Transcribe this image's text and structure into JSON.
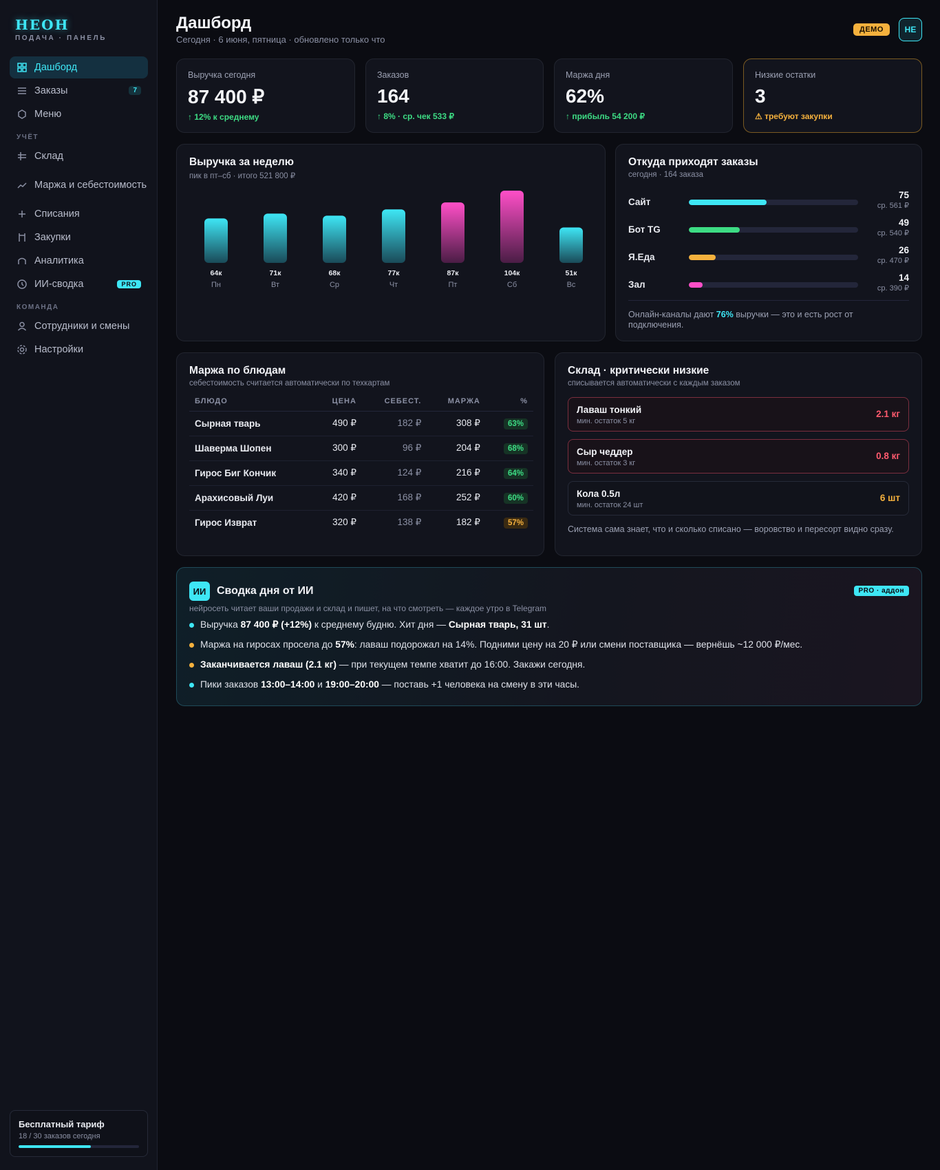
{
  "brand": {
    "logo": "НЕОН",
    "subtitle": "ПОДАЧА · ПАНЕЛЬ"
  },
  "sidebar": {
    "main_items": [
      {
        "label": "Дашборд",
        "icon": "grid-icon",
        "active": true
      },
      {
        "label": "Заказы",
        "icon": "list-icon",
        "badge": "7"
      },
      {
        "label": "Меню",
        "icon": "hexagon-icon"
      }
    ],
    "section_accounting": "УЧЁТ",
    "accounting_items": [
      {
        "label": "Склад",
        "icon": "box-icon"
      },
      {
        "label": "Маржа и себестоимость",
        "icon": "trend-icon"
      },
      {
        "label": "Списания",
        "icon": "plus-icon"
      },
      {
        "label": "Закупки",
        "icon": "cart-icon"
      },
      {
        "label": "Аналитика",
        "icon": "chart-icon"
      },
      {
        "label": "ИИ-сводка",
        "icon": "clock-icon",
        "badge": "PRO"
      }
    ],
    "section_team": "КОМАНДА",
    "team_items": [
      {
        "label": "Сотрудники и смены",
        "icon": "user-icon"
      },
      {
        "label": "Настройки",
        "icon": "gear-icon"
      }
    ],
    "plan": {
      "title": "Бесплатный тариф",
      "usage": "18 / 30 заказов сегодня",
      "used": 18,
      "limit": 30
    }
  },
  "header": {
    "title": "Дашборд",
    "subtitle": "Сегодня · 6 июня, пятница · обновлено только что",
    "demo_badge": "ДЕМО",
    "avatar": "НЕ"
  },
  "kpis": [
    {
      "label": "Выручка сегодня",
      "value": "87 400 ₽",
      "delta": "↑ 12% к среднему"
    },
    {
      "label": "Заказов",
      "value": "164",
      "delta": "↑ 8% · ср. чек 533 ₽"
    },
    {
      "label": "Маржа дня",
      "value": "62%",
      "delta": "↑ прибыль 54 200 ₽"
    },
    {
      "label": "Низкие остатки",
      "value": "3",
      "delta": "⚠ требуют закупки",
      "warning": true
    }
  ],
  "weekly": {
    "title": "Выручка за неделю",
    "subtitle": "пик в пт–сб · итого 521 800 ₽"
  },
  "chart_data": {
    "type": "bar",
    "categories": [
      "Пн",
      "Вт",
      "Ср",
      "Чт",
      "Пт",
      "Сб",
      "Вс"
    ],
    "values": [
      64,
      71,
      68,
      77,
      87,
      104,
      51
    ],
    "value_labels": [
      "64к",
      "71к",
      "68к",
      "77к",
      "87к",
      "104к",
      "51к"
    ],
    "highlight": [
      false,
      false,
      false,
      false,
      true,
      true,
      false
    ],
    "colors": {
      "normal": "#3ee6f5",
      "peak": "#ff4fc8"
    },
    "grid": false
  },
  "sources": {
    "title": "Откуда приходят заказы",
    "subtitle": "сегодня · 164 заказа",
    "items": [
      {
        "name": "Сайт",
        "count": "75",
        "avg": "ср. 561 ₽",
        "share": 0.46,
        "color": "#3ee6f5"
      },
      {
        "name": "Бот TG",
        "count": "49",
        "avg": "ср. 540 ₽",
        "share": 0.3,
        "color": "#3ddc84"
      },
      {
        "name": "Я.Еда",
        "count": "26",
        "avg": "ср. 470 ₽",
        "share": 0.16,
        "color": "#f5b13d"
      },
      {
        "name": "Зал",
        "count": "14",
        "avg": "ср. 390 ₽",
        "share": 0.08,
        "color": "#ff4fc8"
      }
    ],
    "note_before": "Онлайн-каналы дают ",
    "note_highlight": "76%",
    "note_after": " выручки — это и есть рост от подключения."
  },
  "margins": {
    "title": "Маржа по блюдам",
    "subtitle": "себестоимость считается автоматически по техкартам",
    "columns": [
      "БЛЮДО",
      "ЦЕНА",
      "СЕБЕСТ.",
      "МАРЖА",
      "%"
    ],
    "rows": [
      {
        "dish": "Сырная тварь",
        "price": "490 ₽",
        "cost": "182 ₽",
        "margin": "308 ₽",
        "pct": "63%"
      },
      {
        "dish": "Шаверма Шопен",
        "price": "300 ₽",
        "cost": "96 ₽",
        "margin": "204 ₽",
        "pct": "68%"
      },
      {
        "dish": "Гирос Биг Кончик",
        "price": "340 ₽",
        "cost": "124 ₽",
        "margin": "216 ₽",
        "pct": "64%"
      },
      {
        "dish": "Арахисовый Луи",
        "price": "420 ₽",
        "cost": "168 ₽",
        "margin": "252 ₽",
        "pct": "60%"
      },
      {
        "dish": "Гирос Изврат",
        "price": "320 ₽",
        "cost": "138 ₽",
        "margin": "182 ₽",
        "pct": "57%",
        "low": true
      }
    ]
  },
  "stock": {
    "title": "Склад · критически низкие",
    "subtitle": "списывается автоматически с каждым заказом",
    "items": [
      {
        "name": "Лаваш тонкий",
        "min": "мин. остаток 5 кг",
        "qty": "2.1 кг",
        "critical": true
      },
      {
        "name": "Сыр чеддер",
        "min": "мин. остаток 3 кг",
        "qty": "0.8 кг",
        "critical": true
      },
      {
        "name": "Кола 0.5л",
        "min": "мин. остаток 24 шт",
        "qty": "6 шт",
        "critical": false
      }
    ],
    "note": "Система сама знает, что и сколько списано — воровство и пересорт видно сразу."
  },
  "ai": {
    "badge": "ИИ",
    "title": "Сводка дня от ИИ",
    "pro_badge": "PRO · аддон",
    "subtitle": "нейросеть читает ваши продажи и склад и пишет, на что смотреть — каждое утро в Telegram",
    "bullets": [
      {
        "color": "#3ee6f5",
        "parts": [
          {
            "t": "Выручка "
          },
          {
            "t": "87 400 ₽ (+12%)",
            "b": true
          },
          {
            "t": " к среднему будню. Хит дня — "
          },
          {
            "t": "Сырная тварь, 31 шт",
            "b": true
          },
          {
            "t": "."
          }
        ]
      },
      {
        "color": "#f5b13d",
        "parts": [
          {
            "t": "Маржа на гиросах просела до "
          },
          {
            "t": "57%",
            "b": true
          },
          {
            "t": ": лаваш подорожал на 14%. Подними цену на 20 ₽ или смени поставщика — вернёшь ~12 000 ₽/мес."
          }
        ]
      },
      {
        "color": "#f5b13d",
        "parts": [
          {
            "t": "Заканчивается лаваш (2.1 кг)",
            "b": true
          },
          {
            "t": " — при текущем темпе хватит до 16:00. Закажи сегодня."
          }
        ]
      },
      {
        "color": "#3ee6f5",
        "parts": [
          {
            "t": "Пики заказов "
          },
          {
            "t": "13:00–14:00",
            "b": true
          },
          {
            "t": " и "
          },
          {
            "t": "19:00–20:00",
            "b": true
          },
          {
            "t": " — поставь +1 человека на смену в эти часы."
          }
        ]
      }
    ]
  }
}
